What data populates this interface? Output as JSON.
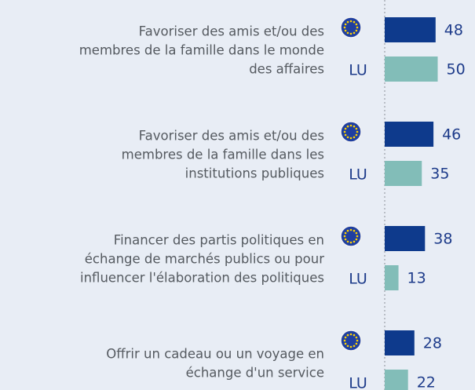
{
  "chart_data": {
    "type": "bar",
    "categories": [
      [
        "Favoriser des amis et/ou des",
        "membres de la famille dans le monde",
        "des affaires"
      ],
      [
        "Favoriser des amis et/ou des",
        "membres de la famille dans les",
        "institutions publiques"
      ],
      [
        "Financer des partis politiques en",
        "échange de marchés publics ou pour",
        "influencer l'élaboration des politiques"
      ],
      [
        "Offrir un cadeau ou un voyage en",
        "échange d'un service"
      ]
    ],
    "series": [
      {
        "color": "#0e3a8c",
        "values": [
          48,
          46,
          38,
          28
        ]
      },
      {
        "name": "LU",
        "color": "#82bdb8",
        "values": [
          50,
          35,
          13,
          22
        ]
      }
    ]
  }
}
